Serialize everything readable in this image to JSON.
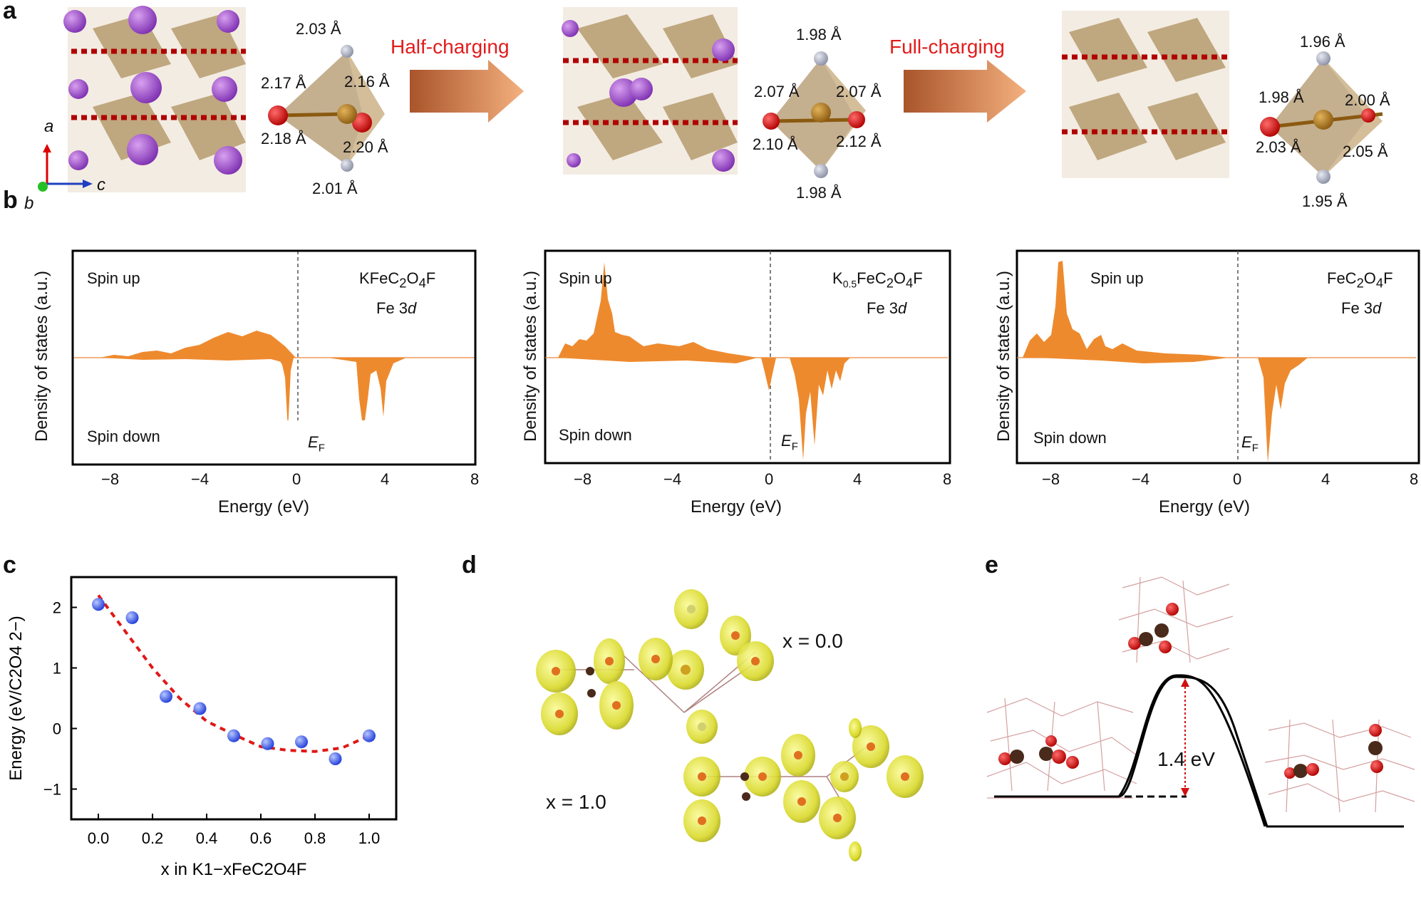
{
  "panels": {
    "a": "a",
    "b": "b",
    "c": "c",
    "d": "d",
    "e": "e"
  },
  "panel_a": {
    "arrows": [
      "Half-charging",
      "Full-charging"
    ],
    "axes": {
      "a": "a",
      "b": "b",
      "c": "c"
    },
    "oct1": [
      "2.03 Å",
      "2.17 Å",
      "2.16 Å",
      "2.18 Å",
      "2.20 Å",
      "2.01 Å"
    ],
    "oct2": [
      "1.98 Å",
      "2.07 Å",
      "2.07 Å",
      "2.10 Å",
      "2.12 Å",
      "1.98 Å"
    ],
    "oct3": [
      "1.96 Å",
      "1.98 Å",
      "2.00 Å",
      "2.03 Å",
      "2.05 Å",
      "1.95 Å"
    ]
  },
  "panel_b": {
    "ylabel": "Density of states (a.u.)",
    "xlabel": "Energy (eV)",
    "spin_up": "Spin up",
    "spin_down": "Spin down",
    "fermi": "E",
    "fermi_sub": "F",
    "orbital": "Fe 3",
    "orbital_d": "d",
    "xticks": [
      "−8",
      "−4",
      "0",
      "4",
      "8"
    ],
    "compounds": [
      {
        "pre": "KFeC",
        "s1": "2",
        "mid": "O",
        "s2": "4",
        "post": "F"
      },
      {
        "pre": "K",
        "s0": "0.5",
        "pre2": "FeC",
        "s1": "2",
        "mid": "O",
        "s2": "4",
        "post": "F"
      },
      {
        "pre": "FeC",
        "s1": "2",
        "mid": "O",
        "s2": "4",
        "post": "F"
      }
    ]
  },
  "panel_d": {
    "x0": "x = 0.0",
    "x1": "x = 1.0"
  },
  "panel_e": {
    "barrier": "1.4 eV"
  },
  "chart_data": {
    "type": "scatter",
    "title": "",
    "xlabel": "x in K1−xFeC2O4F",
    "ylabel": "Energy (eV/C2O4 2−)",
    "xlim": [
      -0.1,
      1.1
    ],
    "ylim": [
      -1.5,
      2.5
    ],
    "xticks": [
      "0.0",
      "0.2",
      "0.4",
      "0.6",
      "0.8",
      "1.0"
    ],
    "yticks": [
      "−1",
      "0",
      "1",
      "2"
    ],
    "x": [
      0.0,
      0.125,
      0.25,
      0.375,
      0.5,
      0.625,
      0.75,
      0.875,
      1.0
    ],
    "y": [
      2.05,
      1.83,
      0.53,
      0.33,
      -0.12,
      -0.25,
      -0.22,
      -0.5,
      -0.12
    ],
    "fit": {
      "x": [
        0.0,
        0.1,
        0.2,
        0.3,
        0.4,
        0.5,
        0.6,
        0.7,
        0.8,
        0.9,
        1.0
      ],
      "y": [
        2.2,
        1.6,
        1.0,
        0.5,
        0.12,
        -0.1,
        -0.3,
        -0.36,
        -0.38,
        -0.32,
        -0.12
      ]
    }
  }
}
